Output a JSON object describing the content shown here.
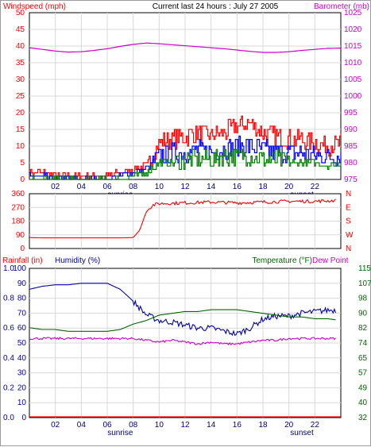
{
  "header": {
    "windspeed_label": "Windspeed (mph)",
    "title": "Current last 24 hours : July 27 2005",
    "barometer_label": "Barometer (mb)"
  },
  "humidity_panel": {
    "rainfall_label": "Rainfall (in)",
    "humidity_label": "Humidity (%)",
    "temperature_label": "Temperature (°F)",
    "dewpoint_label": "Dew Point"
  },
  "colors": {
    "gust": "#ff0000",
    "wind": "#0000ff",
    "wind_low": "#008000",
    "barometer": "#cc00cc",
    "direction": "#ff0000",
    "humidity": "#0000aa",
    "temperature": "#006600",
    "dewpoint": "#cc00cc",
    "rainfall": "#ff0000"
  },
  "chart_data": [
    {
      "type": "bar",
      "title": "Current last 24 hours : July 27 2005",
      "xlabel": "",
      "x_ticks": [
        "02",
        "04",
        "06",
        "08",
        "10",
        "12",
        "14",
        "16",
        "18",
        "20",
        "22"
      ],
      "x_ticks_hours": [
        2,
        4,
        6,
        8,
        10,
        12,
        14,
        16,
        18,
        20,
        22
      ],
      "x_range": [
        0,
        24
      ],
      "markers": [
        {
          "label": "sunrise",
          "hour": 7.0
        },
        {
          "label": "sunset",
          "hour": 21.0
        }
      ],
      "grid": true,
      "ylabel_left": "Windspeed (mph)",
      "ylim_left": [
        0,
        50
      ],
      "y_ticks_left": [
        0,
        5,
        10,
        15,
        20,
        25,
        30,
        35,
        40,
        45,
        50
      ],
      "ylabel_right": "Barometer (mb)",
      "ylim_right": [
        975,
        1025
      ],
      "y_ticks_right": [
        975,
        980,
        985,
        990,
        995,
        1000,
        1005,
        1010,
        1015,
        1020,
        1025
      ],
      "series": [
        {
          "name": "Windspeed (mph)",
          "axis": "left",
          "x": [
            0,
            1,
            2,
            3,
            4,
            5,
            6,
            7,
            8,
            9,
            10,
            11,
            12,
            13,
            14,
            15,
            16,
            17,
            18,
            19,
            20,
            21,
            22,
            23,
            24
          ],
          "values": [
            2,
            2,
            1,
            1,
            1,
            1,
            1,
            2,
            3,
            4,
            11,
            12,
            13,
            14,
            13,
            14,
            16,
            17,
            14,
            13,
            12,
            12,
            11,
            10,
            11
          ]
        },
        {
          "name": "",
          "axis": "left",
          "x": [
            0,
            1,
            2,
            3,
            4,
            5,
            6,
            7,
            8,
            9,
            10,
            11,
            12,
            13,
            14,
            15,
            16,
            17,
            18,
            19,
            20,
            21,
            22,
            23,
            24
          ],
          "values": [
            1,
            1,
            0,
            0,
            0,
            0,
            0,
            1,
            2,
            3,
            7,
            8,
            8,
            9,
            8,
            9,
            10,
            10,
            9,
            8,
            8,
            8,
            7,
            7,
            7
          ]
        },
        {
          "name": "",
          "axis": "left",
          "x": [
            0,
            1,
            2,
            3,
            4,
            5,
            6,
            7,
            8,
            9,
            10,
            11,
            12,
            13,
            14,
            15,
            16,
            17,
            18,
            19,
            20,
            21,
            22,
            23,
            24
          ],
          "values": [
            0,
            0,
            0,
            0,
            0,
            0,
            0,
            0,
            1,
            2,
            5,
            5,
            6,
            6,
            6,
            7,
            7,
            7,
            6,
            6,
            5,
            5,
            5,
            4,
            5
          ]
        },
        {
          "name": "Barometer (mb)",
          "axis": "right",
          "type": "line",
          "x": [
            0,
            1,
            2,
            3,
            4,
            5,
            6,
            7,
            8,
            9,
            10,
            11,
            12,
            13,
            14,
            15,
            16,
            17,
            18,
            19,
            20,
            21,
            22,
            23,
            24
          ],
          "values": [
            1014.5,
            1014.0,
            1013.5,
            1013.2,
            1013.3,
            1013.7,
            1014.2,
            1014.9,
            1015.5,
            1015.9,
            1015.7,
            1015.4,
            1015.1,
            1014.8,
            1014.5,
            1014.2,
            1013.8,
            1013.4,
            1013.1,
            1013.1,
            1013.3,
            1013.7,
            1014.0,
            1014.3,
            1014.4
          ]
        }
      ]
    },
    {
      "type": "line",
      "xlabel": "",
      "x_range": [
        0,
        24
      ],
      "grid": true,
      "ylim_left": [
        0,
        360
      ],
      "y_ticks_left": [
        0,
        90,
        180,
        270,
        360
      ],
      "y_ticks_right": [
        "N",
        "W",
        "S",
        "E",
        "N"
      ],
      "series": [
        {
          "name": "",
          "x": [
            0,
            1,
            2,
            3,
            4,
            5,
            6,
            7,
            8,
            8.5,
            9,
            9.5,
            10,
            12,
            14,
            16,
            18,
            20,
            22,
            23.5
          ],
          "values": [
            72,
            70,
            70,
            70,
            70,
            70,
            70,
            70,
            72,
            120,
            240,
            285,
            295,
            300,
            305,
            300,
            305,
            310,
            310,
            315
          ]
        }
      ]
    },
    {
      "type": "line",
      "x_ticks": [
        "02",
        "04",
        "06",
        "08",
        "10",
        "12",
        "14",
        "16",
        "18",
        "20",
        "22"
      ],
      "x_ticks_hours": [
        2,
        4,
        6,
        8,
        10,
        12,
        14,
        16,
        18,
        20,
        22
      ],
      "x_range": [
        0,
        24
      ],
      "markers": [
        {
          "label": "sunrise",
          "hour": 7.0
        },
        {
          "label": "sunset",
          "hour": 21.0
        }
      ],
      "grid": true,
      "ylabel_left": "Humidity (%)",
      "ylim_left": [
        0,
        100
      ],
      "y_ticks_left": [
        0,
        10,
        20,
        30,
        40,
        50,
        60,
        70,
        80,
        90,
        100
      ],
      "ylabel_left2": "Rainfall (in)",
      "ylim_left2": [
        0,
        1
      ],
      "y_ticks_left2": [
        "0.0",
        "0.2",
        "0.4",
        "0.6",
        "0.8",
        "1.0"
      ],
      "ylabel_right": "Temperature (°F)",
      "ylim_right": [
        32,
        115
      ],
      "y_ticks_right": [
        32,
        40,
        49,
        57,
        65,
        74,
        82,
        90,
        98,
        107,
        115
      ],
      "series": [
        {
          "name": "Humidity (%)",
          "axis": "left",
          "x": [
            0,
            1,
            2,
            3,
            4,
            5,
            6,
            7,
            8,
            9,
            10,
            11,
            12,
            13,
            14,
            15,
            16,
            17,
            18,
            19,
            20,
            21,
            22,
            23,
            24
          ],
          "values": [
            86,
            88,
            89,
            89,
            90,
            90,
            90,
            86,
            78,
            69,
            65,
            64,
            62,
            60,
            60,
            58,
            56,
            60,
            66,
            68,
            68,
            70,
            71,
            72,
            72
          ]
        },
        {
          "name": "Temperature (°F)",
          "axis": "right",
          "x": [
            0,
            1,
            2,
            3,
            4,
            5,
            6,
            7,
            8,
            9,
            10,
            11,
            12,
            13,
            14,
            15,
            16,
            17,
            18,
            19,
            20,
            21,
            22,
            23,
            24
          ],
          "values": [
            82,
            81,
            81,
            80,
            80,
            80,
            80,
            81,
            84,
            86,
            89,
            90,
            91,
            91,
            92,
            92,
            92,
            91,
            90,
            89,
            88,
            88,
            87,
            87,
            86
          ]
        },
        {
          "name": "Dew Point",
          "axis": "right",
          "x": [
            0,
            1,
            2,
            3,
            4,
            5,
            6,
            7,
            8,
            9,
            10,
            11,
            12,
            13,
            14,
            15,
            16,
            17,
            18,
            19,
            20,
            21,
            22,
            23,
            24
          ],
          "values": [
            76,
            76,
            76,
            76,
            76,
            76,
            76,
            76,
            76,
            75,
            74,
            75,
            74,
            73,
            74,
            73,
            73,
            74,
            75,
            75,
            76,
            76,
            76,
            76,
            76
          ]
        },
        {
          "name": "Rainfall (in)",
          "axis": "left2",
          "x": [
            0,
            24
          ],
          "values": [
            0,
            0
          ]
        }
      ]
    }
  ]
}
